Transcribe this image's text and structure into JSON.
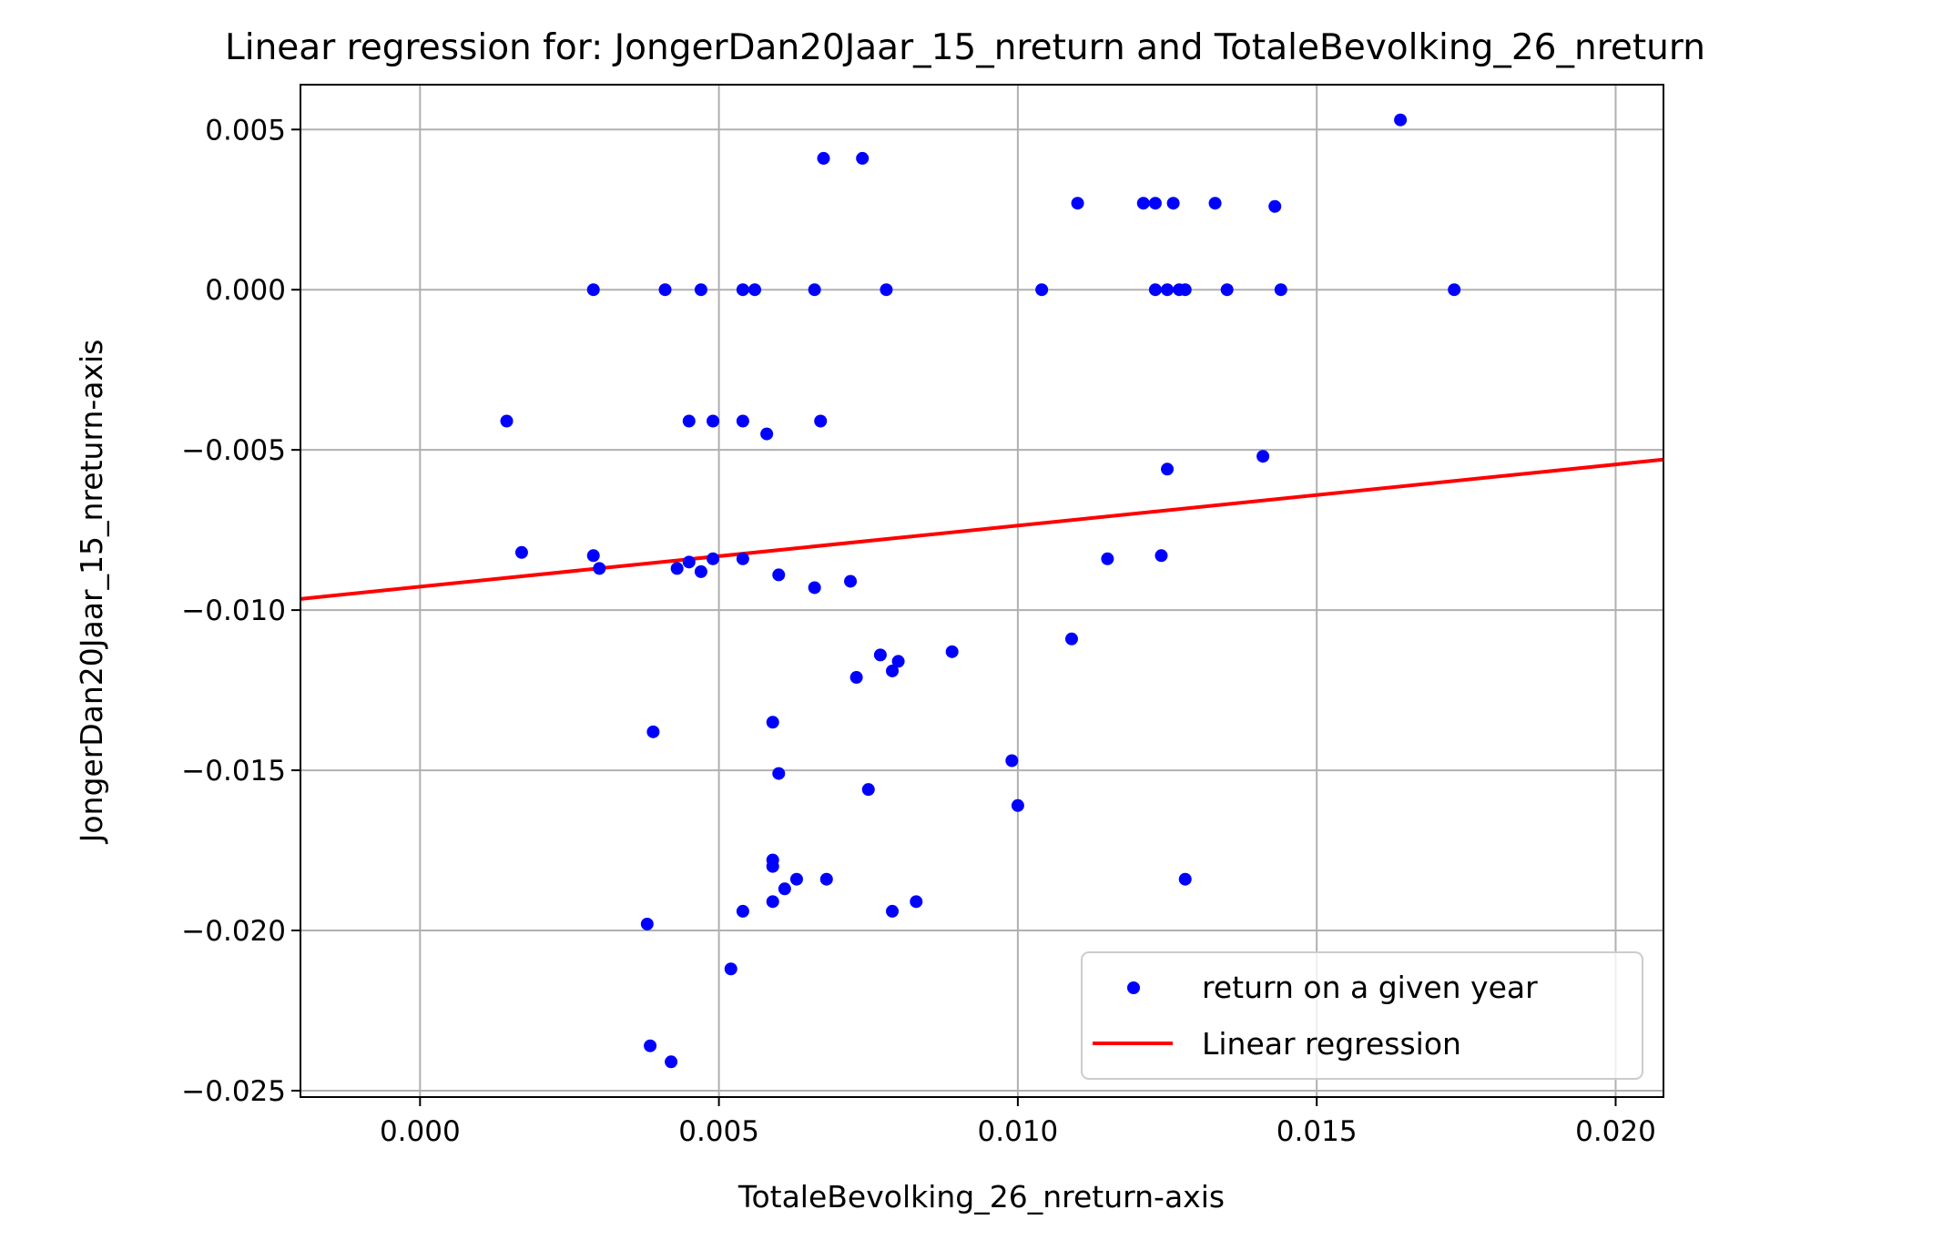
{
  "chart_data": {
    "type": "scatter",
    "title": "Linear regression for: JongerDan20Jaar_15_nreturn and TotaleBevolking_26_nreturn",
    "xlabel": "TotaleBevolking_26_nreturn-axis",
    "ylabel": "JongerDan20Jaar_15_nreturn-axis",
    "xlim": [
      -0.002,
      0.0208
    ],
    "ylim": [
      -0.0252,
      0.0064
    ],
    "xticks": [
      0.0,
      0.005,
      0.01,
      0.015,
      0.02
    ],
    "xtick_labels": [
      "0.000",
      "0.005",
      "0.010",
      "0.015",
      "0.020"
    ],
    "yticks": [
      0.005,
      0.0,
      -0.005,
      -0.01,
      -0.015,
      -0.02,
      -0.025
    ],
    "ytick_labels": [
      "0.005",
      "0.000",
      "−0.005",
      "−0.010",
      "−0.015",
      "−0.020",
      "−0.025"
    ],
    "grid": true,
    "legend_position": "bottom-right",
    "colors": {
      "points": "#0000ff",
      "line": "#ff0000",
      "grid": "#b0b0b0"
    },
    "series": [
      {
        "name": "return on a given year",
        "kind": "scatter",
        "points": [
          [
            0.00145,
            -0.0041
          ],
          [
            0.0017,
            -0.0082
          ],
          [
            0.0029,
            -0.0083
          ],
          [
            0.0029,
            0.0
          ],
          [
            0.003,
            -0.0087
          ],
          [
            0.0038,
            -0.0198
          ],
          [
            0.00385,
            -0.0236
          ],
          [
            0.0039,
            -0.0138
          ],
          [
            0.0041,
            0.0
          ],
          [
            0.0042,
            -0.0241
          ],
          [
            0.0043,
            -0.0087
          ],
          [
            0.0045,
            -0.0085
          ],
          [
            0.0045,
            -0.0041
          ],
          [
            0.0047,
            -0.0088
          ],
          [
            0.0047,
            0.0
          ],
          [
            0.0049,
            -0.0084
          ],
          [
            0.0049,
            -0.0041
          ],
          [
            0.0052,
            -0.0212
          ],
          [
            0.0054,
            -0.0041
          ],
          [
            0.0054,
            -0.0084
          ],
          [
            0.0054,
            0.0
          ],
          [
            0.0054,
            -0.0194
          ],
          [
            0.0056,
            0.0
          ],
          [
            0.0058,
            -0.0045
          ],
          [
            0.0059,
            -0.0135
          ],
          [
            0.0059,
            -0.0178
          ],
          [
            0.0059,
            -0.018
          ],
          [
            0.0059,
            -0.0191
          ],
          [
            0.006,
            -0.0089
          ],
          [
            0.006,
            -0.0151
          ],
          [
            0.0061,
            -0.0187
          ],
          [
            0.0063,
            -0.0184
          ],
          [
            0.0066,
            -0.0093
          ],
          [
            0.0066,
            0.0
          ],
          [
            0.0067,
            -0.0041
          ],
          [
            0.00675,
            0.0041
          ],
          [
            0.0068,
            -0.0184
          ],
          [
            0.0072,
            -0.0091
          ],
          [
            0.0073,
            -0.0121
          ],
          [
            0.0074,
            0.0041
          ],
          [
            0.0075,
            -0.0156
          ],
          [
            0.0077,
            -0.0114
          ],
          [
            0.0078,
            0.0
          ],
          [
            0.0079,
            -0.0119
          ],
          [
            0.0079,
            -0.0194
          ],
          [
            0.008,
            -0.0116
          ],
          [
            0.0083,
            -0.0191
          ],
          [
            0.0089,
            -0.0113
          ],
          [
            0.0099,
            -0.0147
          ],
          [
            0.01,
            -0.0161
          ],
          [
            0.0104,
            0.0
          ],
          [
            0.0109,
            -0.0109
          ],
          [
            0.011,
            0.0027
          ],
          [
            0.0115,
            -0.0084
          ],
          [
            0.0121,
            0.0027
          ],
          [
            0.0123,
            0.0027
          ],
          [
            0.0123,
            0.0
          ],
          [
            0.0124,
            -0.0083
          ],
          [
            0.0125,
            -0.0056
          ],
          [
            0.0125,
            0.0
          ],
          [
            0.0126,
            0.0027
          ],
          [
            0.0127,
            0.0
          ],
          [
            0.0128,
            -0.0184
          ],
          [
            0.0128,
            0.0
          ],
          [
            0.0133,
            0.0027
          ],
          [
            0.0135,
            0.0
          ],
          [
            0.0141,
            -0.0052
          ],
          [
            0.0143,
            0.0026
          ],
          [
            0.0144,
            0.0
          ],
          [
            0.0164,
            0.0053
          ],
          [
            0.0173,
            0.0
          ]
        ]
      },
      {
        "name": "Linear regression",
        "kind": "line",
        "slope": 0.1908,
        "intercept": -0.00927,
        "x_range": [
          -0.002,
          0.0208
        ]
      }
    ]
  }
}
